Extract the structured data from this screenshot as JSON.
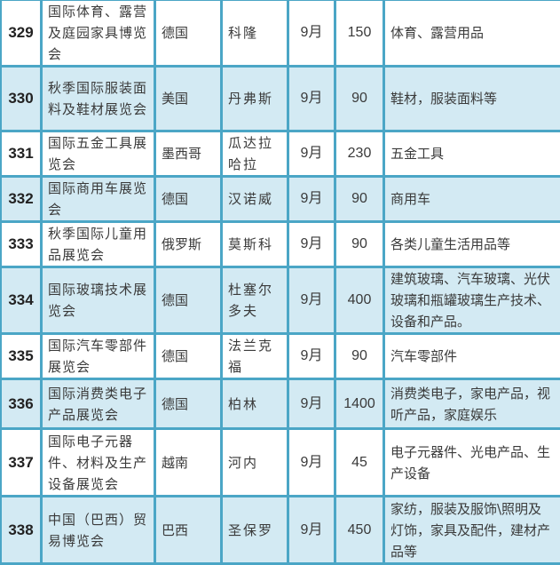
{
  "rows": [
    {
      "no": "329",
      "name": "国际体育、露营及庭园家具博览会",
      "country": "德国",
      "city": "科隆",
      "month": "9月",
      "area": "150",
      "products": "体育、露营用品",
      "shaded": false
    },
    {
      "no": "330",
      "name": "秋季国际服装面料及鞋材展览会",
      "country": "美国",
      "city": "丹弗斯",
      "month": "9月",
      "area": "90",
      "products": "鞋材，服装面料等",
      "shaded": true
    },
    {
      "no": "331",
      "name": "国际五金工具展览会",
      "country": "墨西哥",
      "city": "瓜达拉哈拉",
      "month": "9月",
      "area": "230",
      "products": "五金工具",
      "shaded": false
    },
    {
      "no": "332",
      "name": "国际商用车展览会",
      "country": "德国",
      "city": "汉诺威",
      "month": "9月",
      "area": "90",
      "products": "商用车",
      "shaded": true
    },
    {
      "no": "333",
      "name": "秋季国际儿童用品展览会",
      "country": "俄罗斯",
      "city": "莫斯科",
      "month": "9月",
      "area": "90",
      "products": "各类儿童生活用品等",
      "shaded": false
    },
    {
      "no": "334",
      "name": "国际玻璃技术展览会",
      "country": "德国",
      "city": "杜塞尔多夫",
      "month": "9月",
      "area": "400",
      "products": "建筑玻璃、汽车玻璃、光伏玻璃和瓶罐玻璃生产技术、设备和产品。",
      "shaded": true
    },
    {
      "no": "335",
      "name": "国际汽车零部件展览会",
      "country": "德国",
      "city": "法兰克福",
      "month": "9月",
      "area": "90",
      "products": "汽车零部件",
      "shaded": false
    },
    {
      "no": "336",
      "name": "国际消费类电子产品展览会",
      "country": "德国",
      "city": "柏林",
      "month": "9月",
      "area": "1400",
      "products": "消费类电子，家电产品，视听产品，家庭娱乐",
      "shaded": true
    },
    {
      "no": "337",
      "name": "国际电子元器件、材料及生产设备展览会",
      "country": "越南",
      "city": "河内",
      "month": "9月",
      "area": "45",
      "products": "电子元器件、光电产品、生产设备",
      "shaded": false
    },
    {
      "no": "338",
      "name": "中国（巴西）贸易博览会",
      "country": "巴西",
      "city": "圣保罗",
      "month": "9月",
      "area": "450",
      "products": "家纺，服装及服饰\\照明及灯饰，家具及配件，建材产品等",
      "shaded": true
    }
  ],
  "colors": {
    "border": "#4ba6c6",
    "shade": "#d3eaf3"
  }
}
